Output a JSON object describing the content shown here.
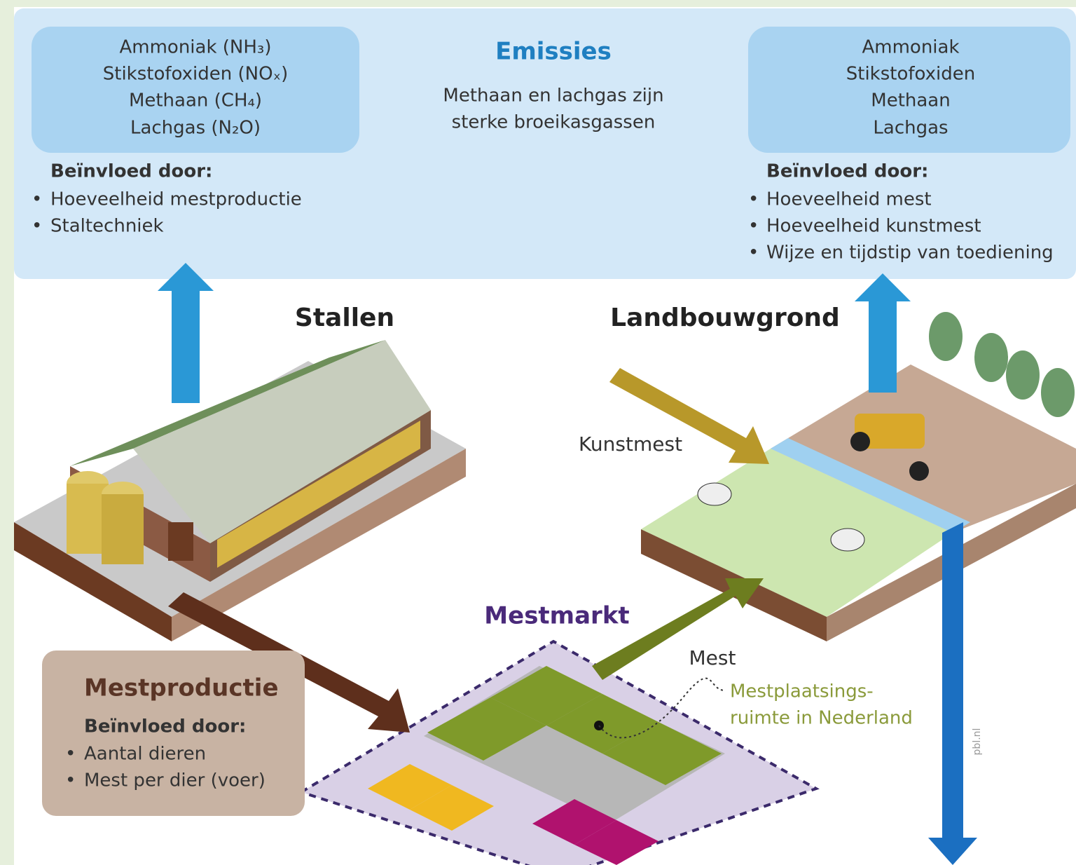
{
  "emissions": {
    "title": "Emissies",
    "subtitle": [
      "Methaan en lachgas zijn",
      "sterke broeikasgassen"
    ],
    "left": {
      "gases": [
        "Ammoniak (NH₃)",
        "Stikstofoxiden (NOₓ)",
        "Methaan (CH₄)",
        "Lachgas (N₂O)"
      ],
      "influenced_by": "Beïnvloed door:",
      "factors": [
        "Hoeveelheid mestproductie",
        "Staltechniek"
      ]
    },
    "right": {
      "gases": [
        "Ammoniak",
        "Stikstofoxiden",
        "Methaan",
        "Lachgas"
      ],
      "influenced_by": "Beïnvloed door:",
      "factors": [
        "Hoeveelheid mest",
        "Hoeveelheid kunstmest",
        "Wijze en tijdstip van toediening"
      ]
    }
  },
  "labels": {
    "stallen": "Stallen",
    "landbouwgrond": "Landbouwgrond",
    "kunstmest": "Kunstmest",
    "mestmarkt": "Mestmarkt",
    "mest": "Mest",
    "mestplaatsingsruimte": [
      "Mestplaatsings-",
      "ruimte in Nederland"
    ],
    "source": "pbl.nl"
  },
  "mestproductie": {
    "title": "Mestproductie",
    "influenced_by": "Beïnvloed door:",
    "factors": [
      "Aantal dieren",
      "Mest per dier (voer)"
    ]
  }
}
